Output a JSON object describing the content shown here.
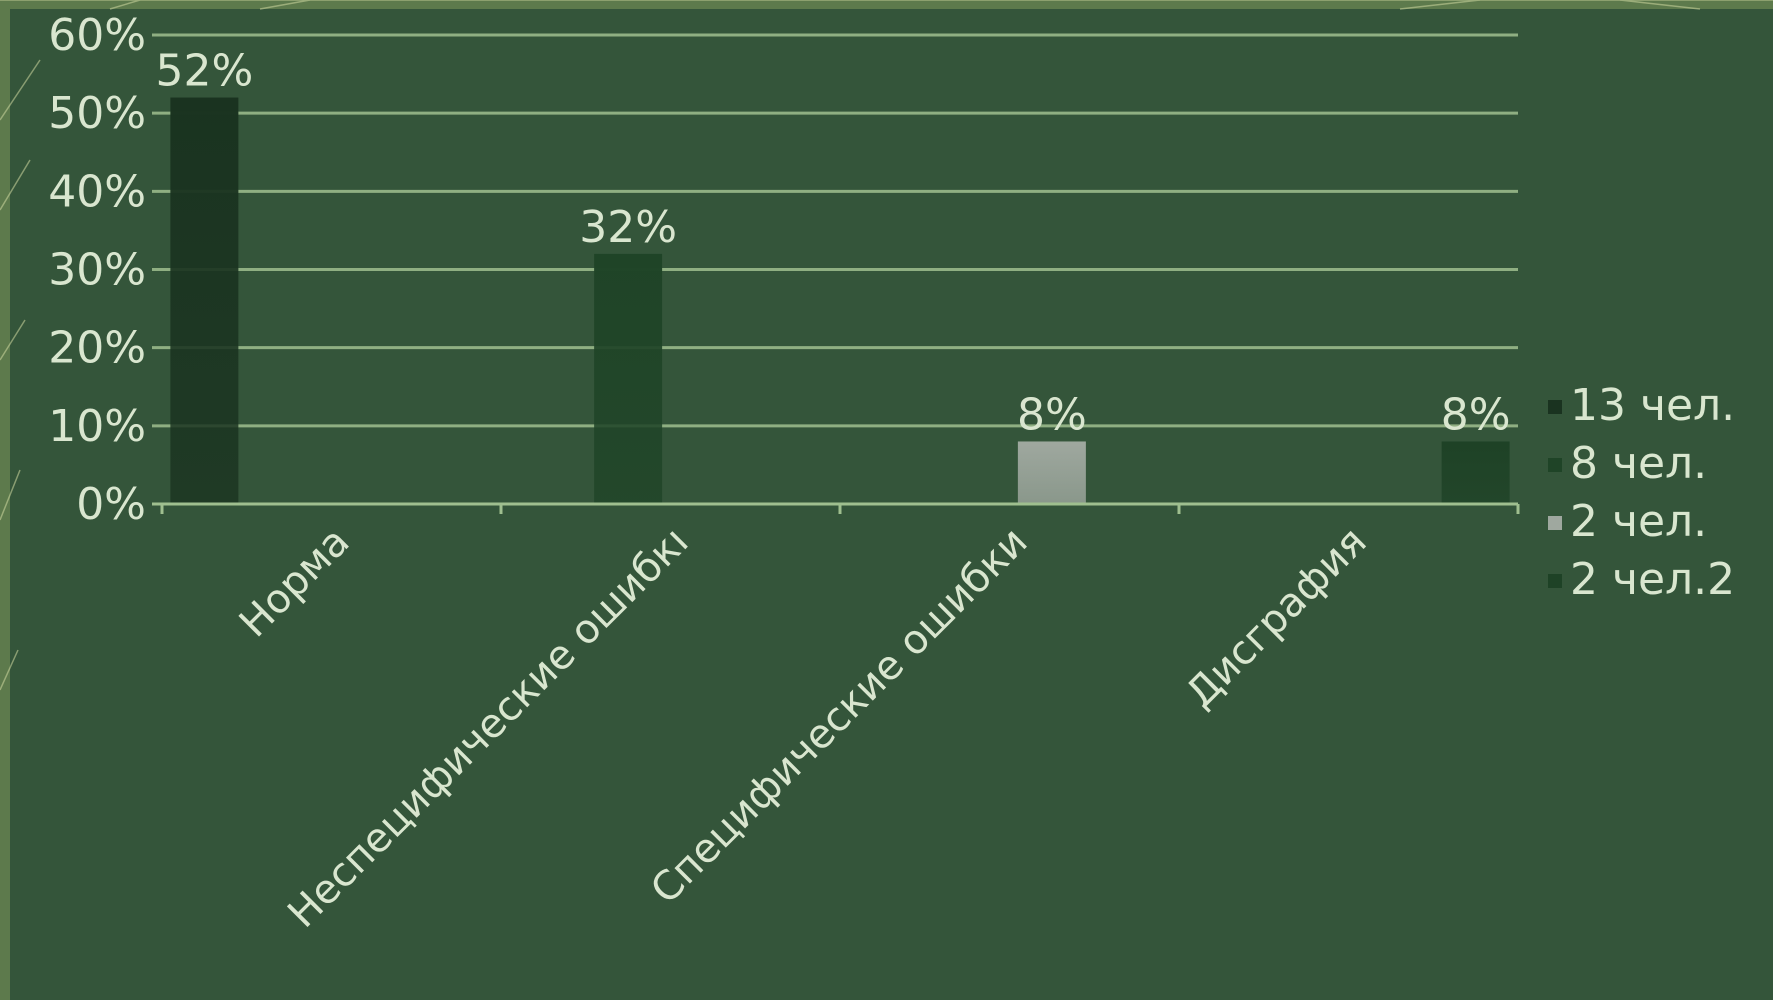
{
  "chart_data": {
    "type": "bar",
    "categories": [
      "Норма",
      "Неспецифические ошибкı",
      "Специфические ошибки",
      "Дисграфия"
    ],
    "series": [
      {
        "name": "13 чел.",
        "values": [
          52,
          null,
          null,
          null
        ],
        "labels": [
          "52%",
          "",
          "",
          ""
        ],
        "color": "#1a3320"
      },
      {
        "name": "8 чел.",
        "values": [
          null,
          32,
          null,
          null
        ],
        "labels": [
          "",
          "32%",
          "",
          ""
        ],
        "color": "#1f4427"
      },
      {
        "name": "2 чел.",
        "values": [
          null,
          null,
          8,
          null
        ],
        "labels": [
          "",
          "",
          "8%",
          ""
        ],
        "color": "#9fa89f"
      },
      {
        "name": "2 чел.2",
        "values": [
          null,
          null,
          null,
          8
        ],
        "labels": [
          "",
          "",
          "",
          "8%"
        ],
        "color": "#1e4226"
      }
    ],
    "ylim": [
      0,
      60
    ],
    "yticks": [
      "0%",
      "10%",
      "20%",
      "30%",
      "40%",
      "50%",
      "60%"
    ],
    "grid": true,
    "legend": "right",
    "title": "",
    "xlabel": "",
    "ylabel": ""
  },
  "colors": {
    "background": "#34553a",
    "text": "#d9e6cf",
    "grid": "#9fbf8f",
    "axis": "#9fbf8f",
    "frame_accent": "#cfd8a0"
  }
}
